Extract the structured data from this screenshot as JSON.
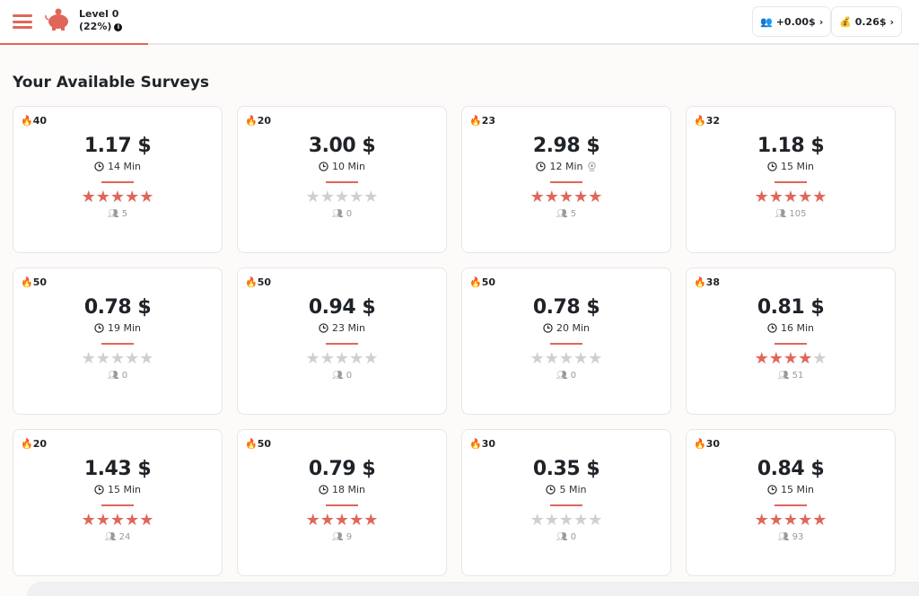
{
  "header": {
    "level": "Level 0",
    "percent": "(22%)",
    "progress": 22,
    "info_icon": "info-icon",
    "referral": "+0.00$",
    "balance": "0.26$"
  },
  "title": "Your Available Surveys",
  "colors": {
    "accent": "#e0665a",
    "star_off": "#cfcfd3"
  },
  "surveys": [
    {
      "hot": "40",
      "price": "1.17 $",
      "time": "14 Min",
      "stars": 5,
      "count": "5",
      "webcam": false
    },
    {
      "hot": "20",
      "price": "3.00 $",
      "time": "10 Min",
      "stars": 0,
      "count": "0",
      "webcam": false
    },
    {
      "hot": "23",
      "price": "2.98 $",
      "time": "12 Min",
      "stars": 5,
      "count": "5",
      "webcam": true
    },
    {
      "hot": "32",
      "price": "1.18 $",
      "time": "15 Min",
      "stars": 5,
      "count": "105",
      "webcam": false
    },
    {
      "hot": "50",
      "price": "0.78 $",
      "time": "19 Min",
      "stars": 0,
      "count": "0",
      "webcam": false
    },
    {
      "hot": "50",
      "price": "0.94 $",
      "time": "23 Min",
      "stars": 0,
      "count": "0",
      "webcam": false
    },
    {
      "hot": "50",
      "price": "0.78 $",
      "time": "20 Min",
      "stars": 0,
      "count": "0",
      "webcam": false
    },
    {
      "hot": "38",
      "price": "0.81 $",
      "time": "16 Min",
      "stars": 4,
      "count": "51",
      "webcam": false
    },
    {
      "hot": "20",
      "price": "1.43 $",
      "time": "15 Min",
      "stars": 5,
      "count": "24",
      "webcam": false
    },
    {
      "hot": "50",
      "price": "0.79 $",
      "time": "18 Min",
      "stars": 5,
      "count": "9",
      "webcam": false
    },
    {
      "hot": "30",
      "price": "0.35 $",
      "time": "5 Min",
      "stars": 0,
      "count": "0",
      "webcam": false
    },
    {
      "hot": "30",
      "price": "0.84 $",
      "time": "15 Min",
      "stars": 5,
      "count": "93",
      "webcam": false
    }
  ]
}
